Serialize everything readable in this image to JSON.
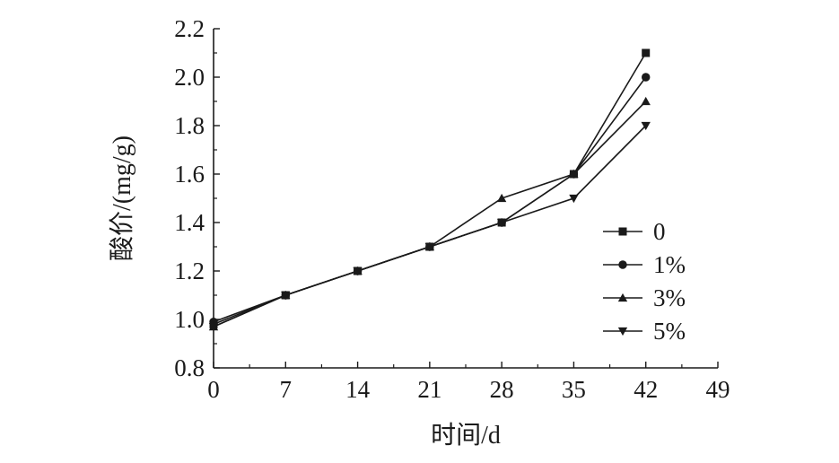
{
  "chart_data": {
    "type": "line",
    "xlabel": "时间/d",
    "ylabel": "酸价/(mg/g)",
    "xlim": [
      0,
      49
    ],
    "ylim": [
      0.8,
      2.2
    ],
    "x_ticks": [
      "0",
      "7",
      "14",
      "21",
      "28",
      "35",
      "42",
      "49"
    ],
    "y_ticks": [
      "0.8",
      "1.0",
      "1.2",
      "1.4",
      "1.6",
      "1.8",
      "2.0",
      "2.2"
    ],
    "x": [
      0,
      7,
      14,
      21,
      28,
      35,
      42
    ],
    "grid": false,
    "legend_position": "right",
    "series": [
      {
        "name": "0",
        "marker": "square",
        "values": [
          0.98,
          1.1,
          1.2,
          1.3,
          1.4,
          1.6,
          2.1
        ]
      },
      {
        "name": "1%",
        "marker": "circle",
        "values": [
          0.99,
          1.1,
          1.2,
          1.3,
          1.4,
          1.6,
          2.0
        ]
      },
      {
        "name": "3%",
        "marker": "triangle-up",
        "values": [
          0.97,
          1.1,
          1.2,
          1.3,
          1.5,
          1.6,
          1.9
        ]
      },
      {
        "name": "5%",
        "marker": "triangle-down",
        "values": [
          0.97,
          1.1,
          1.2,
          1.3,
          1.4,
          1.5,
          1.8
        ]
      }
    ],
    "line_color": "#1a1a1a"
  }
}
